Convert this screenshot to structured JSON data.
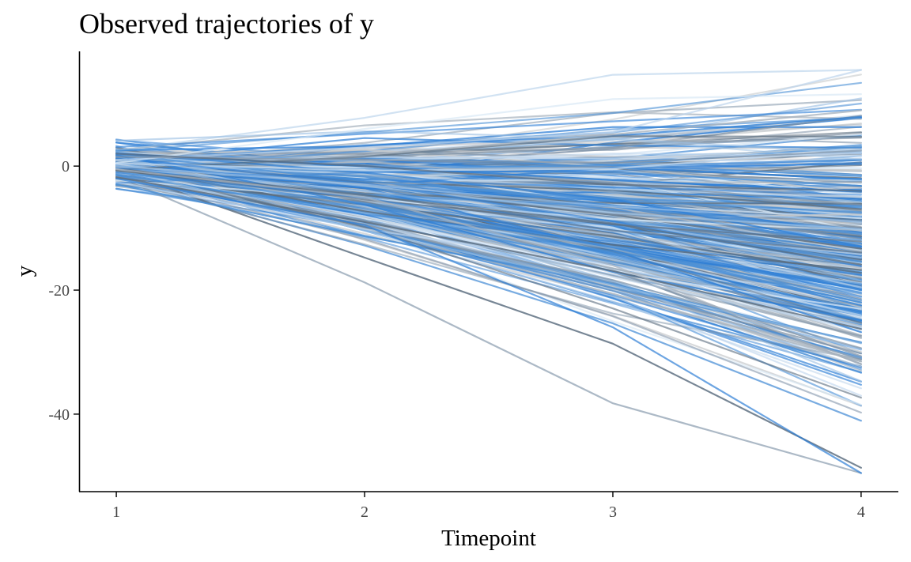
{
  "chart_data": {
    "type": "line",
    "title": "Observed trajectories of y",
    "xlabel": "Timepoint",
    "ylabel": "y",
    "x": [
      1,
      2,
      3,
      4
    ],
    "xlim": [
      0.85,
      4.15
    ],
    "ylim": [
      -52.5,
      18.5
    ],
    "x_ticks": [
      "1",
      "2",
      "3",
      "4"
    ],
    "y_ticks": [
      0,
      -20,
      -40
    ],
    "y_tick_labels": [
      "0",
      "-20",
      "-40"
    ],
    "grid": false,
    "legend": "none",
    "series_count": 500,
    "line_colors": [
      "#d9e8f5",
      "#bdd4ec",
      "#9ec1e4",
      "#4a8fd6",
      "#2f7fd6",
      "#7f93a8",
      "#a9b4bf",
      "#5c6e80",
      "#c6c9cc"
    ],
    "example_trajectories": [
      {
        "values": [
          0.5,
          6.0,
          10.8,
          11.6
        ]
      },
      {
        "values": [
          1.0,
          3.0,
          5.5,
          15.5
        ]
      },
      {
        "values": [
          0.0,
          -3.0,
          -6.5,
          -9.0
        ]
      },
      {
        "values": [
          -1.0,
          -6.0,
          -13.0,
          -22.0
        ]
      },
      {
        "values": [
          -2.0,
          -9.5,
          -26.0,
          -49.5
        ]
      },
      {
        "values": [
          1.5,
          1.0,
          0.5,
          2.5
        ]
      },
      {
        "values": [
          -0.5,
          -5.0,
          -16.0,
          -32.0
        ]
      },
      {
        "values": [
          2.0,
          0.0,
          -3.0,
          -4.0
        ]
      }
    ]
  }
}
